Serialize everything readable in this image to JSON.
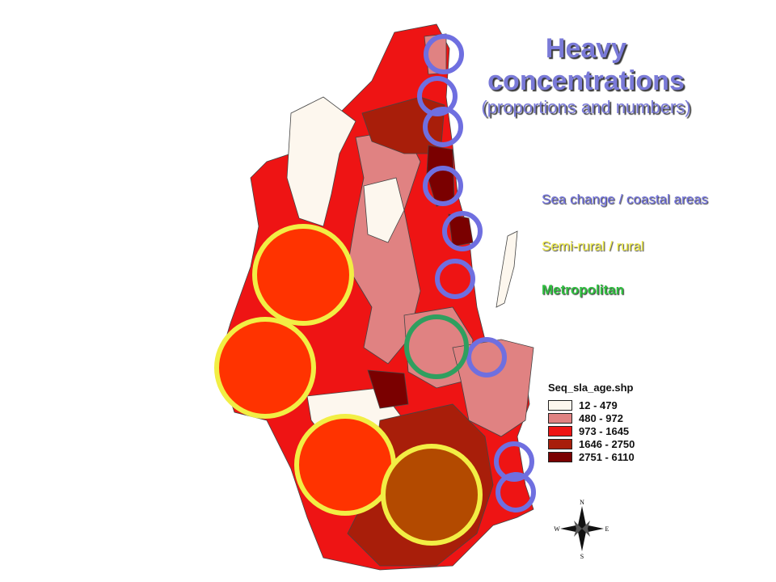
{
  "title": {
    "main": "Heavy concentrations",
    "sub": "(proportions and numbers)"
  },
  "categories": [
    {
      "label": "Sea change / coastal areas",
      "color": "#6f6fe0"
    },
    {
      "label": "Semi-rural / rural",
      "color": "#f2ee44"
    },
    {
      "label": "Metropolitan",
      "color": "#2fbf3f"
    }
  ],
  "legend": {
    "title": "Seq_sla_age.shp",
    "classes": [
      {
        "range": "12 - 479",
        "color": "#fdf7ee"
      },
      {
        "range": "480 - 972",
        "color": "#e08282"
      },
      {
        "range": "973 - 1645",
        "color": "#ee1414"
      },
      {
        "range": "1646 - 2750",
        "color": "#a81e0a"
      },
      {
        "range": "2751 - 6110",
        "color": "#7a0000"
      }
    ]
  },
  "compass": {
    "n": "N",
    "s": "S",
    "e": "E",
    "w": "W"
  }
}
